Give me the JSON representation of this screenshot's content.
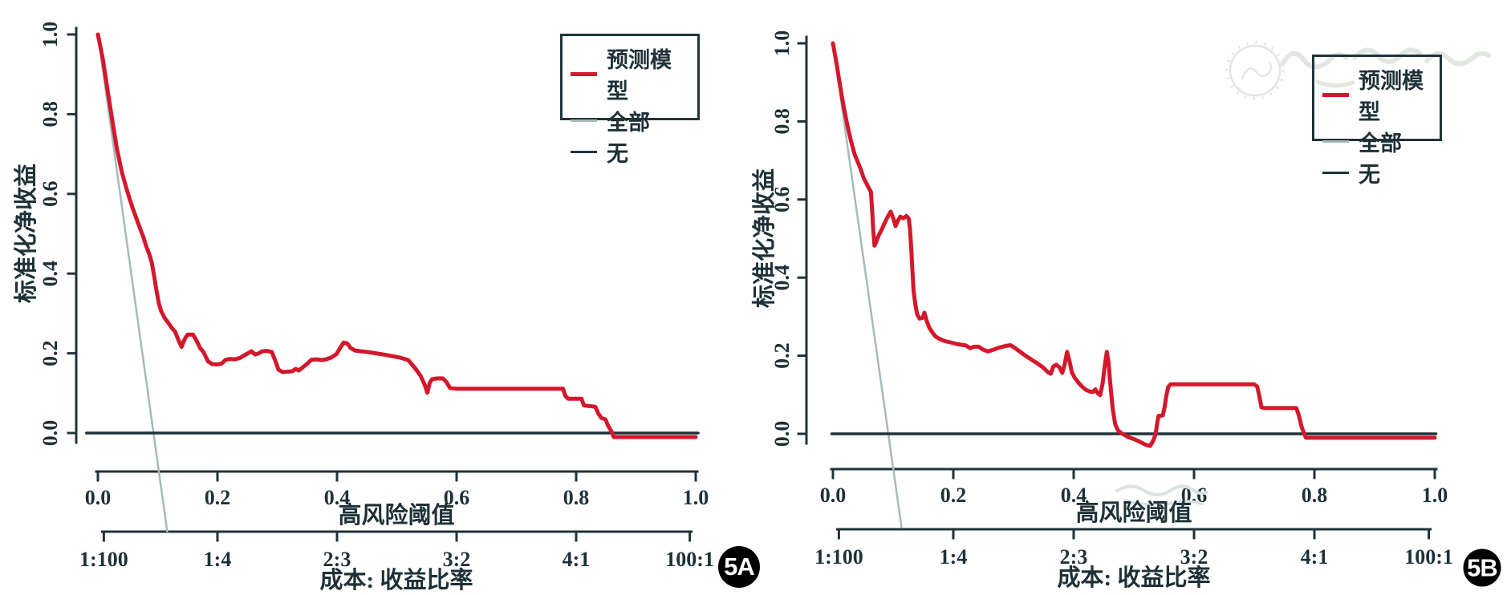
{
  "figure": {
    "background": "#ffffff",
    "axis_color": "#20333b",
    "text_color": "#1e3138",
    "watermark": {
      "icon": "circular-seal-watermark",
      "color": "#e2e6e1"
    }
  },
  "chart_data": [
    {
      "type": "line",
      "panel_label": "5A",
      "ylabel": "标准化净收益",
      "xlabel": "高风险阈值",
      "xlabel_secondary": "成本: 收益比率",
      "xlim": [
        0,
        1
      ],
      "ylim": [
        0,
        1
      ],
      "grid": false,
      "legend_position": "top-right",
      "ytick_labels": [
        "0.0",
        "0.2",
        "0.4",
        "0.6",
        "0.8",
        "1.0"
      ],
      "xtick_labels": [
        "0.0",
        "0.2",
        "0.4",
        "0.6",
        "0.8",
        "1.0"
      ],
      "secondary_xticks": {
        "positions": [
          0.0099,
          0.2,
          0.4,
          0.6,
          0.8,
          0.9901
        ],
        "labels": [
          "1:100",
          "1:4",
          "2:3",
          "3:2",
          "4:1",
          "100:1"
        ]
      },
      "series": [
        {
          "name": "预测模型",
          "color": "#d4182c",
          "width": 5,
          "points": [
            [
              0,
              1.0
            ],
            [
              0.008,
              0.94
            ],
            [
              0.016,
              0.862
            ],
            [
              0.024,
              0.785
            ],
            [
              0.032,
              0.712
            ],
            [
              0.04,
              0.655
            ],
            [
              0.048,
              0.612
            ],
            [
              0.053,
              0.588
            ],
            [
              0.058,
              0.565
            ],
            [
              0.064,
              0.54
            ],
            [
              0.07,
              0.515
            ],
            [
              0.076,
              0.492
            ],
            [
              0.081,
              0.468
            ],
            [
              0.086,
              0.448
            ],
            [
              0.09,
              0.428
            ],
            [
              0.094,
              0.395
            ],
            [
              0.098,
              0.358
            ],
            [
              0.102,
              0.325
            ],
            [
              0.106,
              0.305
            ],
            [
              0.112,
              0.288
            ],
            [
              0.118,
              0.276
            ],
            [
              0.124,
              0.263
            ],
            [
              0.129,
              0.255
            ],
            [
              0.135,
              0.232
            ],
            [
              0.14,
              0.216
            ],
            [
              0.145,
              0.235
            ],
            [
              0.15,
              0.247
            ],
            [
              0.159,
              0.247
            ],
            [
              0.165,
              0.232
            ],
            [
              0.171,
              0.213
            ],
            [
              0.177,
              0.202
            ],
            [
              0.184,
              0.18
            ],
            [
              0.191,
              0.173
            ],
            [
              0.199,
              0.172
            ],
            [
              0.207,
              0.174
            ],
            [
              0.213,
              0.183
            ],
            [
              0.221,
              0.186
            ],
            [
              0.229,
              0.185
            ],
            [
              0.237,
              0.188
            ],
            [
              0.244,
              0.194
            ],
            [
              0.251,
              0.2
            ],
            [
              0.257,
              0.205
            ],
            [
              0.263,
              0.197
            ],
            [
              0.269,
              0.2
            ],
            [
              0.275,
              0.205
            ],
            [
              0.283,
              0.206
            ],
            [
              0.291,
              0.203
            ],
            [
              0.297,
              0.18
            ],
            [
              0.302,
              0.159
            ],
            [
              0.309,
              0.153
            ],
            [
              0.317,
              0.154
            ],
            [
              0.325,
              0.155
            ],
            [
              0.331,
              0.161
            ],
            [
              0.336,
              0.157
            ],
            [
              0.343,
              0.165
            ],
            [
              0.351,
              0.175
            ],
            [
              0.357,
              0.184
            ],
            [
              0.366,
              0.185
            ],
            [
              0.374,
              0.183
            ],
            [
              0.382,
              0.185
            ],
            [
              0.391,
              0.19
            ],
            [
              0.399,
              0.198
            ],
            [
              0.405,
              0.213
            ],
            [
              0.411,
              0.227
            ],
            [
              0.417,
              0.225
            ],
            [
              0.423,
              0.213
            ],
            [
              0.43,
              0.207
            ],
            [
              0.441,
              0.205
            ],
            [
              0.453,
              0.203
            ],
            [
              0.465,
              0.2
            ],
            [
              0.478,
              0.197
            ],
            [
              0.492,
              0.193
            ],
            [
              0.506,
              0.189
            ],
            [
              0.519,
              0.183
            ],
            [
              0.531,
              0.162
            ],
            [
              0.54,
              0.143
            ],
            [
              0.547,
              0.12
            ],
            [
              0.551,
              0.101
            ],
            [
              0.555,
              0.126
            ],
            [
              0.559,
              0.135
            ],
            [
              0.568,
              0.137
            ],
            [
              0.577,
              0.137
            ],
            [
              0.583,
              0.128
            ],
            [
              0.589,
              0.113
            ],
            [
              0.6,
              0.111
            ],
            [
              0.68,
              0.111
            ],
            [
              0.778,
              0.111
            ],
            [
              0.782,
              0.093
            ],
            [
              0.787,
              0.086
            ],
            [
              0.809,
              0.086
            ],
            [
              0.813,
              0.069
            ],
            [
              0.832,
              0.066
            ],
            [
              0.837,
              0.049
            ],
            [
              0.842,
              0.038
            ],
            [
              0.849,
              0.034
            ],
            [
              0.854,
              0.017
            ],
            [
              0.859,
              0.004
            ],
            [
              0.863,
              -0.01
            ],
            [
              0.92,
              -0.01
            ],
            [
              1.0,
              -0.01
            ]
          ]
        },
        {
          "name": "全部",
          "color": "#a5babc",
          "width": 2.5,
          "points": [
            [
              0,
              1.0
            ],
            [
              0.116,
              -0.247
            ]
          ]
        },
        {
          "name": "无",
          "color": "#20333b",
          "width": 3.5,
          "points": [
            [
              -0.019,
              0
            ],
            [
              1.004,
              0
            ]
          ]
        }
      ]
    },
    {
      "type": "line",
      "panel_label": "5B",
      "ylabel": "标准化净收益",
      "xlabel": "高风险阈值",
      "xlabel_secondary": "成本: 收益比率",
      "xlim": [
        0,
        1
      ],
      "ylim": [
        0,
        1
      ],
      "grid": false,
      "legend_position": "top-right",
      "ytick_labels": [
        "0.0",
        "0.2",
        "0.4",
        "0.6",
        "0.8",
        "1.0"
      ],
      "xtick_labels": [
        "0.0",
        "0.2",
        "0.4",
        "0.6",
        "0.8",
        "1.0"
      ],
      "secondary_xticks": {
        "positions": [
          0.0099,
          0.2,
          0.4,
          0.6,
          0.8,
          0.9901
        ],
        "labels": [
          "1:100",
          "1:4",
          "2:3",
          "3:2",
          "4:1",
          "100:1"
        ]
      },
      "series": [
        {
          "name": "预测模型",
          "color": "#d4182c",
          "width": 5,
          "points": [
            [
              0,
              1.0
            ],
            [
              0.006,
              0.948
            ],
            [
              0.012,
              0.89
            ],
            [
              0.018,
              0.836
            ],
            [
              0.024,
              0.79
            ],
            [
              0.03,
              0.75
            ],
            [
              0.036,
              0.716
            ],
            [
              0.041,
              0.697
            ],
            [
              0.046,
              0.678
            ],
            [
              0.051,
              0.655
            ],
            [
              0.055,
              0.643
            ],
            [
              0.059,
              0.631
            ],
            [
              0.063,
              0.62
            ],
            [
              0.065,
              0.575
            ],
            [
              0.067,
              0.52
            ],
            [
              0.069,
              0.482
            ],
            [
              0.072,
              0.492
            ],
            [
              0.076,
              0.508
            ],
            [
              0.081,
              0.523
            ],
            [
              0.086,
              0.54
            ],
            [
              0.091,
              0.556
            ],
            [
              0.096,
              0.569
            ],
            [
              0.1,
              0.553
            ],
            [
              0.104,
              0.532
            ],
            [
              0.108,
              0.546
            ],
            [
              0.112,
              0.556
            ],
            [
              0.117,
              0.552
            ],
            [
              0.122,
              0.558
            ],
            [
              0.126,
              0.551
            ],
            [
              0.128,
              0.525
            ],
            [
              0.13,
              0.478
            ],
            [
              0.132,
              0.42
            ],
            [
              0.134,
              0.366
            ],
            [
              0.137,
              0.33
            ],
            [
              0.14,
              0.306
            ],
            [
              0.144,
              0.295
            ],
            [
              0.149,
              0.297
            ],
            [
              0.152,
              0.31
            ],
            [
              0.156,
              0.288
            ],
            [
              0.16,
              0.272
            ],
            [
              0.165,
              0.26
            ],
            [
              0.17,
              0.25
            ],
            [
              0.176,
              0.244
            ],
            [
              0.183,
              0.239
            ],
            [
              0.19,
              0.236
            ],
            [
              0.198,
              0.233
            ],
            [
              0.206,
              0.23
            ],
            [
              0.214,
              0.228
            ],
            [
              0.221,
              0.226
            ],
            [
              0.228,
              0.219
            ],
            [
              0.234,
              0.223
            ],
            [
              0.242,
              0.223
            ],
            [
              0.249,
              0.216
            ],
            [
              0.257,
              0.211
            ],
            [
              0.264,
              0.214
            ],
            [
              0.271,
              0.218
            ],
            [
              0.279,
              0.222
            ],
            [
              0.287,
              0.225
            ],
            [
              0.295,
              0.227
            ],
            [
              0.303,
              0.219
            ],
            [
              0.311,
              0.21
            ],
            [
              0.32,
              0.2
            ],
            [
              0.33,
              0.19
            ],
            [
              0.34,
              0.18
            ],
            [
              0.35,
              0.169
            ],
            [
              0.357,
              0.158
            ],
            [
              0.362,
              0.154
            ],
            [
              0.366,
              0.172
            ],
            [
              0.371,
              0.177
            ],
            [
              0.376,
              0.171
            ],
            [
              0.381,
              0.156
            ],
            [
              0.385,
              0.178
            ],
            [
              0.389,
              0.21
            ],
            [
              0.393,
              0.186
            ],
            [
              0.397,
              0.157
            ],
            [
              0.402,
              0.143
            ],
            [
              0.408,
              0.131
            ],
            [
              0.414,
              0.121
            ],
            [
              0.42,
              0.113
            ],
            [
              0.427,
              0.108
            ],
            [
              0.432,
              0.107
            ],
            [
              0.436,
              0.114
            ],
            [
              0.44,
              0.104
            ],
            [
              0.444,
              0.099
            ],
            [
              0.448,
              0.128
            ],
            [
              0.452,
              0.178
            ],
            [
              0.455,
              0.21
            ],
            [
              0.458,
              0.182
            ],
            [
              0.461,
              0.124
            ],
            [
              0.465,
              0.062
            ],
            [
              0.469,
              0.024
            ],
            [
              0.474,
              0.008
            ],
            [
              0.481,
              0.0
            ],
            [
              0.49,
              -0.008
            ],
            [
              0.501,
              -0.014
            ],
            [
              0.512,
              -0.022
            ],
            [
              0.521,
              -0.029
            ],
            [
              0.527,
              -0.031
            ],
            [
              0.532,
              -0.018
            ],
            [
              0.536,
              -0.002
            ],
            [
              0.539,
              0.03
            ],
            [
              0.541,
              0.046
            ],
            [
              0.548,
              0.047
            ],
            [
              0.551,
              0.068
            ],
            [
              0.554,
              0.098
            ],
            [
              0.557,
              0.12
            ],
            [
              0.561,
              0.127
            ],
            [
              0.64,
              0.127
            ],
            [
              0.7,
              0.127
            ],
            [
              0.705,
              0.121
            ],
            [
              0.709,
              0.092
            ],
            [
              0.712,
              0.068
            ],
            [
              0.718,
              0.066
            ],
            [
              0.77,
              0.066
            ],
            [
              0.774,
              0.048
            ],
            [
              0.778,
              0.022
            ],
            [
              0.782,
              0.004
            ],
            [
              0.786,
              -0.01
            ],
            [
              0.85,
              -0.01
            ],
            [
              0.93,
              -0.01
            ],
            [
              1.0,
              -0.01
            ]
          ]
        },
        {
          "name": "全部",
          "color": "#a5babc",
          "width": 2.5,
          "points": [
            [
              0,
              1.0
            ],
            [
              0.114,
              -0.239
            ]
          ]
        },
        {
          "name": "无",
          "color": "#20333b",
          "width": 3.5,
          "points": [
            [
              -0.002,
              0
            ],
            [
              1.002,
              0
            ]
          ]
        }
      ]
    }
  ]
}
